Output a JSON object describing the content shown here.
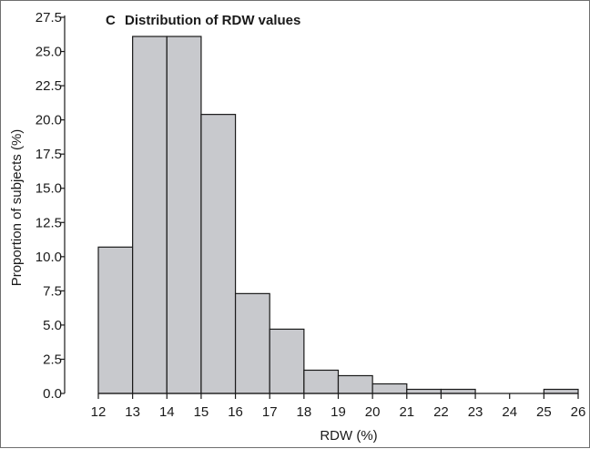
{
  "chart_data": {
    "type": "bar",
    "panel_label": "C",
    "title": "Distribution of RDW values",
    "xlabel": "RDW (%)",
    "ylabel": "Proportion of subjects (%)",
    "bins": [
      {
        "from": 12,
        "to": 13,
        "value": 10.7
      },
      {
        "from": 13,
        "to": 14,
        "value": 26.1
      },
      {
        "from": 14,
        "to": 15,
        "value": 26.1
      },
      {
        "from": 15,
        "to": 16,
        "value": 20.4
      },
      {
        "from": 16,
        "to": 17,
        "value": 7.3
      },
      {
        "from": 17,
        "to": 18,
        "value": 4.7
      },
      {
        "from": 18,
        "to": 19,
        "value": 1.7
      },
      {
        "from": 19,
        "to": 20,
        "value": 1.3
      },
      {
        "from": 20,
        "to": 21,
        "value": 0.7
      },
      {
        "from": 21,
        "to": 22,
        "value": 0.3
      },
      {
        "from": 22,
        "to": 23,
        "value": 0.3
      },
      {
        "from": 23,
        "to": 24,
        "value": 0.0
      },
      {
        "from": 24,
        "to": 25,
        "value": 0.0
      },
      {
        "from": 25,
        "to": 26,
        "value": 0.3
      }
    ],
    "x_ticks": [
      "12",
      "13",
      "14",
      "15",
      "16",
      "17",
      "18",
      "19",
      "20",
      "21",
      "22",
      "23",
      "24",
      "25",
      "26"
    ],
    "y_ticks": [
      "0.0",
      "2.5",
      "5.0",
      "7.5",
      "10.0",
      "12.5",
      "15.0",
      "17.5",
      "20.0",
      "22.5",
      "25.0",
      "27.5"
    ],
    "xlim": [
      12,
      26
    ],
    "ylim": [
      0,
      27.5
    ],
    "grid": false,
    "bar_color": "#c8c9cd"
  }
}
